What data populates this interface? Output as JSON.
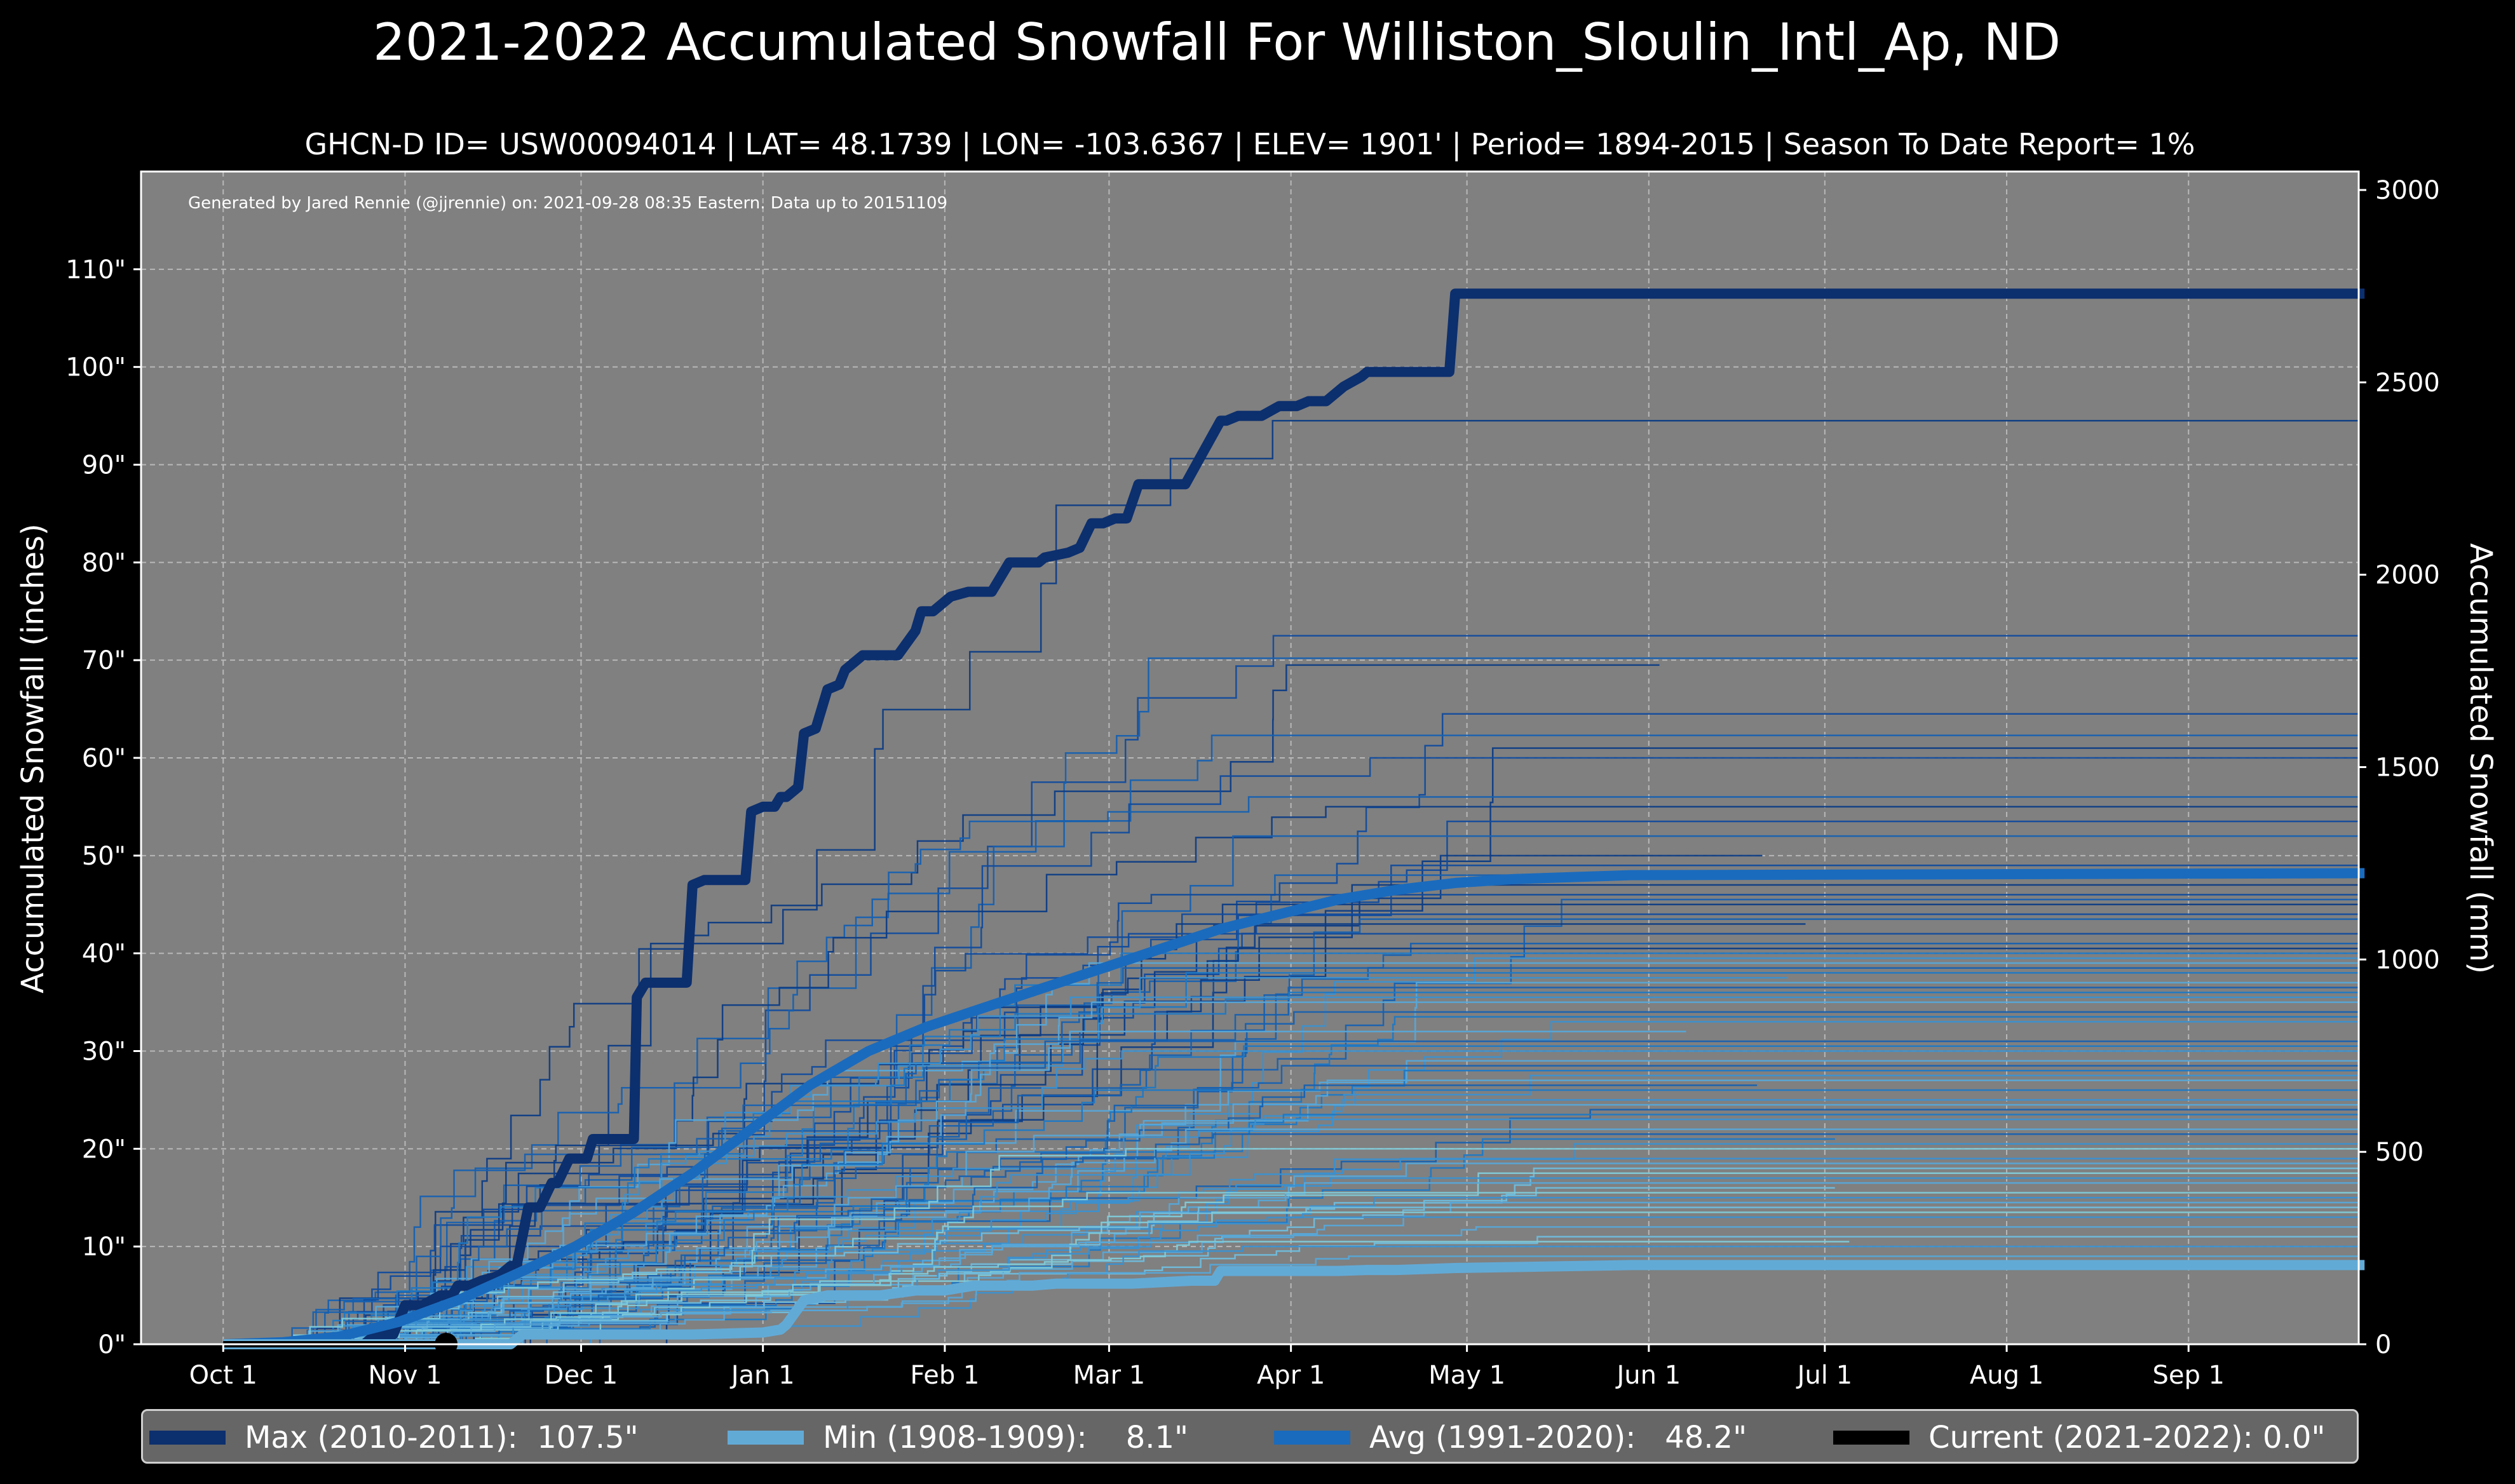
{
  "title": "2021-2022 Accumulated Snowfall For Williston_Sloulin_Intl_Ap, ND",
  "subtitle": "GHCN-D ID= USW00094014 | LAT= 48.1739 | LON= -103.6367 | ELEV= 1901' | Period= 1894-2015 | Season To Date Report= 1%",
  "generated_note": "Generated by Jared Rennie (@jjrennie) on: 2021-09-28 08:35 Eastern. Data up to 20151109",
  "legend": [
    {
      "label": "Max (2010-2011):  107.5\"",
      "color": "#0c2f6e"
    },
    {
      "label": "Min (1908-1909):    8.1\"",
      "color": "#62aad6"
    },
    {
      "label": "Avg (1991-2020):   48.2\"",
      "color": "#1a6bbd"
    },
    {
      "label": "Current (2021-2022): 0.0\"",
      "color": "#000000"
    }
  ],
  "chart_data": {
    "type": "line",
    "title": "2021-2022 Accumulated Snowfall For Williston_Sloulin_Intl_Ap, ND",
    "xlabel": "",
    "ylabel": "Accumulated Snowfall (inches)",
    "ylabel_right": "Accumulated Snowfall (mm)",
    "x_unit": "day of season (0 = Oct 1)",
    "xlim": [
      0,
      365
    ],
    "ylim": [
      0,
      120
    ],
    "ylim_right_mm": [
      0,
      3048
    ],
    "grid": true,
    "legend_position": "bottom",
    "x_ticks": [
      {
        "label": "Oct 1",
        "day": 0
      },
      {
        "label": "Nov 1",
        "day": 31
      },
      {
        "label": "Dec 1",
        "day": 61
      },
      {
        "label": "Jan 1",
        "day": 92
      },
      {
        "label": "Feb 1",
        "day": 123
      },
      {
        "label": "Mar 1",
        "day": 151
      },
      {
        "label": "Apr 1",
        "day": 182
      },
      {
        "label": "May 1",
        "day": 212
      },
      {
        "label": "Jun 1",
        "day": 243
      },
      {
        "label": "Jul 1",
        "day": 273
      },
      {
        "label": "Aug 1",
        "day": 304
      },
      {
        "label": "Sep 1",
        "day": 335
      }
    ],
    "y_ticks": [
      {
        "label": "0\"",
        "value": 0
      },
      {
        "label": "10\"",
        "value": 10
      },
      {
        "label": "20\"",
        "value": 20
      },
      {
        "label": "30\"",
        "value": 30
      },
      {
        "label": "40\"",
        "value": 40
      },
      {
        "label": "50\"",
        "value": 50
      },
      {
        "label": "60\"",
        "value": 60
      },
      {
        "label": "70\"",
        "value": 70
      },
      {
        "label": "80\"",
        "value": 80
      },
      {
        "label": "90\"",
        "value": 90
      },
      {
        "label": "100\"",
        "value": 100
      },
      {
        "label": "110\"",
        "value": 110
      }
    ],
    "y_ticks_right_mm": [
      {
        "label": "0",
        "value": 0
      },
      {
        "label": "500",
        "value": 500
      },
      {
        "label": "1000",
        "value": 1000
      },
      {
        "label": "1500",
        "value": 1500
      },
      {
        "label": "2000",
        "value": 2000
      },
      {
        "label": "2500",
        "value": 2500
      },
      {
        "label": "3000",
        "value": 3000
      }
    ],
    "highlight_series": [
      {
        "name": "Max (2010-2011)",
        "total": 107.5,
        "color": "#0c2f6e",
        "width": 16,
        "x": [
          0,
          24,
          26,
          29,
          31,
          34,
          37,
          39,
          40,
          42,
          44,
          47,
          49,
          50,
          52,
          54,
          56,
          57,
          59,
          62,
          63,
          65,
          66,
          70,
          70.5,
          72,
          75,
          77,
          79,
          80,
          82,
          84,
          87,
          89,
          90,
          92,
          94,
          95,
          96,
          98,
          99,
          101,
          103,
          105,
          106,
          108,
          109,
          110,
          112,
          115,
          118,
          119,
          121,
          124,
          127,
          131,
          134,
          139,
          140,
          144,
          146,
          148,
          150,
          152,
          154,
          156,
          157,
          160,
          162,
          164,
          170,
          171,
          173,
          177,
          180,
          183,
          185,
          188,
          191,
          194,
          195,
          197,
          201,
          205,
          209,
          210,
          365
        ],
        "y": [
          0,
          0,
          1,
          1,
          4,
          4,
          5,
          5,
          6,
          6,
          6.5,
          7,
          8,
          8,
          14,
          14,
          16.5,
          16.5,
          19,
          19,
          21,
          21,
          21,
          21,
          35.5,
          37,
          37,
          37,
          37,
          47,
          47.5,
          47.5,
          47.5,
          47.5,
          54.5,
          55,
          55,
          56,
          56,
          57,
          62.5,
          63,
          67,
          67.5,
          69,
          70,
          70.5,
          70.5,
          70.5,
          70.5,
          73,
          75,
          75,
          76.5,
          77,
          77,
          80,
          80,
          80.5,
          81,
          81.5,
          84,
          84,
          84.5,
          84.5,
          88,
          88,
          88,
          88,
          88,
          94.5,
          94.5,
          95,
          95,
          96,
          96,
          96.5,
          96.5,
          98,
          99,
          99.5,
          99.5,
          99.5,
          99.5,
          99.5,
          107.5,
          107.5
        ]
      },
      {
        "name": "Avg (1991-2020)",
        "total": 48.2,
        "color": "#1a6bbd",
        "width": 16,
        "x": [
          0,
          10,
          20,
          30,
          40,
          50,
          60,
          70,
          80,
          90,
          100,
          110,
          120,
          130,
          140,
          150,
          160,
          170,
          180,
          190,
          200,
          210,
          220,
          230,
          240,
          365
        ],
        "y": [
          0,
          0.2,
          0.8,
          2.3,
          4.5,
          7.2,
          10,
          13.5,
          17.5,
          22,
          26.5,
          30,
          32.5,
          34.5,
          36.5,
          38.5,
          40.5,
          42.5,
          44,
          45.5,
          46.5,
          47.2,
          47.6,
          47.8,
          48.0,
          48.2
        ]
      },
      {
        "name": "Min (1908-1909)",
        "total": 8.1,
        "color": "#62aad6",
        "width": 16,
        "x": [
          0,
          49,
          51,
          60,
          65,
          80,
          92,
          95,
          96,
          99,
          103,
          112,
          118,
          119,
          123,
          128,
          131,
          134,
          138,
          142,
          150,
          155,
          165,
          169,
          170,
          175,
          180,
          185,
          190,
          195,
          200,
          210,
          240,
          365
        ],
        "y": [
          0,
          0,
          1,
          1,
          1,
          1,
          1.2,
          1.5,
          2,
          4.5,
          5,
          5,
          5.5,
          5.5,
          5.5,
          6,
          6,
          6,
          6,
          6.2,
          6.2,
          6.2,
          6.5,
          6.5,
          7.5,
          7.5,
          7.5,
          7.5,
          7.5,
          7.6,
          7.6,
          7.8,
          8.1,
          8.1
        ]
      },
      {
        "name": "Current (2021-2022)",
        "total": 0.0,
        "color": "#000000",
        "width": 10,
        "x": [
          0,
          38
        ],
        "y": [
          0,
          0
        ]
      }
    ],
    "other_season_final_totals_approx": [
      94.5,
      72.5,
      70.2,
      69.5,
      64.5,
      62.3,
      61,
      60,
      56,
      55,
      53.5,
      52,
      50,
      49,
      48,
      47,
      46,
      45.5,
      45,
      44,
      43.5,
      43,
      42,
      41,
      40.5,
      40,
      39.5,
      39,
      38.5,
      38,
      37.5,
      37,
      36.5,
      36,
      35.5,
      35,
      34,
      33.5,
      33,
      32,
      31,
      30.5,
      30,
      29,
      28.5,
      28,
      27.5,
      27,
      26.5,
      26,
      25,
      24.5,
      24,
      23.5,
      23,
      22,
      21.5,
      21,
      20.5,
      20,
      19,
      18.5,
      18,
      17.5,
      17,
      16.5,
      16,
      15.5,
      15,
      14.5,
      14,
      13.5,
      13,
      12,
      11,
      10.5,
      10,
      9
    ]
  }
}
